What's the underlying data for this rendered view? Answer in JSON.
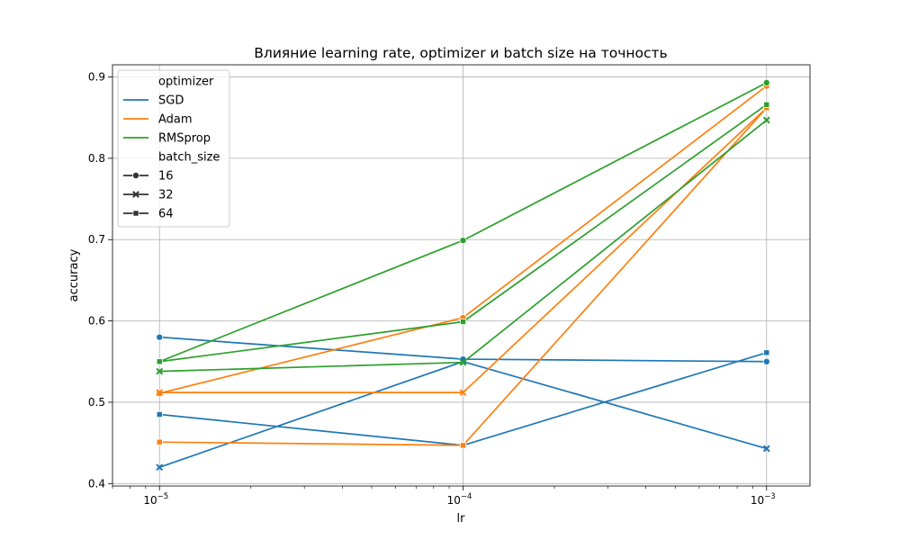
{
  "chart_data": {
    "type": "line",
    "title": "Влияние learning rate, optimizer и batch size на точность",
    "xlabel": "lr",
    "ylabel": "accuracy",
    "x_scale": "log",
    "x": [
      1e-05,
      0.0001,
      0.001
    ],
    "x_tick_labels": [
      {
        "value": 1e-05,
        "base": "10",
        "exp": "−5"
      },
      {
        "value": 0.0001,
        "base": "10",
        "exp": "−4"
      },
      {
        "value": 0.001,
        "base": "10",
        "exp": "−3"
      }
    ],
    "xlim": [
      7e-06,
      0.00139
    ],
    "ylim": [
      0.397,
      0.915
    ],
    "y_ticks": [
      0.4,
      0.5,
      0.6,
      0.7,
      0.8,
      0.9
    ],
    "y_tick_labels": [
      "0.4",
      "0.5",
      "0.6",
      "0.7",
      "0.8",
      "0.9"
    ],
    "grid": true,
    "legend": {
      "placement": "upper left",
      "hue_title": "optimizer",
      "style_title": "batch_size",
      "hue_entries": [
        "SGD",
        "Adam",
        "RMSprop"
      ],
      "style_entries": [
        {
          "label": "16",
          "marker": "circle"
        },
        {
          "label": "32",
          "marker": "x"
        },
        {
          "label": "64",
          "marker": "square"
        }
      ]
    },
    "colors": {
      "SGD": "#1f77b4",
      "Adam": "#ff7f0e",
      "RMSprop": "#2ca02c"
    },
    "series": [
      {
        "optimizer": "SGD",
        "batch_size": "16",
        "marker": "circle",
        "values": [
          0.58,
          0.553,
          0.55
        ]
      },
      {
        "optimizer": "SGD",
        "batch_size": "32",
        "marker": "x",
        "values": [
          0.42,
          0.55,
          0.443
        ]
      },
      {
        "optimizer": "SGD",
        "batch_size": "64",
        "marker": "square",
        "values": [
          0.485,
          0.447,
          0.561
        ]
      },
      {
        "optimizer": "Adam",
        "batch_size": "16",
        "marker": "circle",
        "values": [
          0.511,
          0.604,
          0.889
        ]
      },
      {
        "optimizer": "Adam",
        "batch_size": "32",
        "marker": "x",
        "values": [
          0.512,
          0.512,
          0.862
        ]
      },
      {
        "optimizer": "Adam",
        "batch_size": "64",
        "marker": "square",
        "values": [
          0.451,
          0.447,
          0.862
        ]
      },
      {
        "optimizer": "RMSprop",
        "batch_size": "16",
        "marker": "circle",
        "values": [
          0.55,
          0.699,
          0.893
        ]
      },
      {
        "optimizer": "RMSprop",
        "batch_size": "32",
        "marker": "x",
        "values": [
          0.538,
          0.549,
          0.847
        ]
      },
      {
        "optimizer": "RMSprop",
        "batch_size": "64",
        "marker": "square",
        "values": [
          0.55,
          0.599,
          0.866
        ]
      }
    ]
  }
}
